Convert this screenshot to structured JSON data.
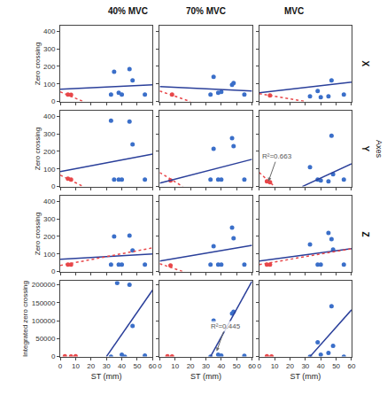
{
  "column_titles": [
    "40% MVC",
    "70% MVC",
    "MVC"
  ],
  "row_labels": [
    "X",
    "Y",
    "Z"
  ],
  "side_label": "Axes",
  "chart_data": [
    {
      "type": "scatter",
      "ylabel": "Zero crossing",
      "tick_labels": "y",
      "xlim": [
        0,
        60
      ],
      "xticks": [
        0,
        10,
        20,
        30,
        40,
        50,
        60
      ],
      "ylim": [
        0,
        430
      ],
      "yticks": [
        0,
        100,
        200,
        300,
        400
      ],
      "series": [
        {
          "type": "scatter",
          "color": "#3b6fc9",
          "marker": "circle",
          "x": [
            33,
            35,
            38,
            40,
            45,
            47,
            55
          ],
          "values": [
            40,
            170,
            50,
            40,
            185,
            120,
            40
          ]
        },
        {
          "type": "scatter",
          "color": "#e8474a",
          "marker": "circle",
          "x": [
            5,
            7
          ],
          "values": [
            40,
            38
          ]
        },
        {
          "type": "line",
          "color": "#2a3f9a",
          "line_style": "solid",
          "x": [
            0,
            60
          ],
          "values": [
            70,
            95
          ]
        },
        {
          "type": "line",
          "color": "#e8474a",
          "line_style": "dotted",
          "x": [
            0,
            15
          ],
          "values": [
            55,
            0
          ]
        }
      ]
    },
    {
      "type": "scatter",
      "tick_labels": false,
      "xlim": [
        0,
        60
      ],
      "xticks": [
        0,
        10,
        20,
        30,
        40,
        50,
        60
      ],
      "ylim": [
        0,
        430
      ],
      "yticks": [
        0,
        100,
        200,
        300,
        400
      ],
      "series": [
        {
          "type": "scatter",
          "color": "#3b6fc9",
          "marker": "circle",
          "x": [
            33,
            35,
            38,
            40,
            47,
            48,
            55
          ],
          "values": [
            40,
            140,
            50,
            55,
            95,
            105,
            40
          ]
        },
        {
          "type": "scatter",
          "color": "#e8474a",
          "marker": "circle",
          "x": [
            8
          ],
          "values": [
            40
          ]
        },
        {
          "type": "line",
          "color": "#2a3f9a",
          "line_style": "solid",
          "x": [
            0,
            60
          ],
          "values": [
            85,
            60
          ]
        },
        {
          "type": "line",
          "color": "#e8474a",
          "line_style": "dotted",
          "x": [
            0,
            20
          ],
          "values": [
            60,
            0
          ]
        }
      ]
    },
    {
      "type": "scatter",
      "tick_labels": false,
      "xlim": [
        0,
        60
      ],
      "xticks": [
        0,
        10,
        20,
        30,
        40,
        50,
        60
      ],
      "ylim": [
        0,
        430
      ],
      "yticks": [
        0,
        100,
        200,
        300,
        400
      ],
      "series": [
        {
          "type": "scatter",
          "color": "#3b6fc9",
          "marker": "circle",
          "x": [
            33,
            38,
            40,
            45,
            47,
            55
          ],
          "values": [
            30,
            60,
            25,
            30,
            120,
            40
          ]
        },
        {
          "type": "scatter",
          "color": "#e8474a",
          "marker": "circle",
          "x": [
            7
          ],
          "values": [
            35
          ]
        },
        {
          "type": "line",
          "color": "#2a3f9a",
          "line_style": "solid",
          "x": [
            0,
            60
          ],
          "values": [
            50,
            110
          ]
        },
        {
          "type": "line",
          "color": "#e8474a",
          "line_style": "dotted",
          "x": [
            0,
            30
          ],
          "values": [
            45,
            0
          ]
        }
      ]
    },
    {
      "type": "scatter",
      "ylabel": "Zero crossing",
      "tick_labels": "y",
      "xlim": [
        0,
        60
      ],
      "xticks": [
        0,
        10,
        20,
        30,
        40,
        50,
        60
      ],
      "ylim": [
        0,
        430
      ],
      "yticks": [
        0,
        100,
        200,
        300,
        400
      ],
      "series": [
        {
          "type": "scatter",
          "color": "#3b6fc9",
          "marker": "circle",
          "x": [
            33,
            35,
            38,
            40,
            45,
            47,
            55
          ],
          "values": [
            375,
            40,
            40,
            40,
            370,
            240,
            40
          ]
        },
        {
          "type": "scatter",
          "color": "#e8474a",
          "marker": "circle",
          "x": [
            5,
            7
          ],
          "values": [
            45,
            40
          ]
        },
        {
          "type": "line",
          "color": "#2a3f9a",
          "line_style": "solid",
          "x": [
            0,
            60
          ],
          "values": [
            85,
            185
          ]
        },
        {
          "type": "line",
          "color": "#e8474a",
          "line_style": "dotted",
          "x": [
            0,
            15
          ],
          "values": [
            65,
            0
          ]
        }
      ]
    },
    {
      "type": "scatter",
      "tick_labels": false,
      "xlim": [
        0,
        60
      ],
      "xticks": [
        0,
        10,
        20,
        30,
        40,
        50,
        60
      ],
      "ylim": [
        0,
        430
      ],
      "yticks": [
        0,
        100,
        200,
        300,
        400
      ],
      "series": [
        {
          "type": "scatter",
          "color": "#3b6fc9",
          "marker": "circle",
          "x": [
            33,
            35,
            38,
            40,
            47,
            48,
            55
          ],
          "values": [
            40,
            215,
            40,
            40,
            275,
            230,
            40
          ]
        },
        {
          "type": "scatter",
          "color": "#e8474a",
          "marker": "circle",
          "x": [
            7
          ],
          "values": [
            35
          ]
        },
        {
          "type": "line",
          "color": "#2a3f9a",
          "line_style": "solid",
          "x": [
            0,
            60
          ],
          "values": [
            20,
            155
          ]
        },
        {
          "type": "line",
          "color": "#e8474a",
          "line_style": "dotted",
          "x": [
            0,
            15
          ],
          "values": [
            80,
            0
          ]
        }
      ]
    },
    {
      "type": "scatter",
      "tick_labels": false,
      "xlim": [
        0,
        60
      ],
      "xticks": [
        0,
        10,
        20,
        30,
        40,
        50,
        60
      ],
      "ylim": [
        0,
        430
      ],
      "yticks": [
        0,
        100,
        200,
        300,
        400
      ],
      "series": [
        {
          "type": "scatter",
          "color": "#3b6fc9",
          "marker": "circle",
          "x": [
            33,
            38,
            40,
            45,
            47,
            48,
            55
          ],
          "values": [
            110,
            40,
            35,
            30,
            290,
            70,
            40
          ]
        },
        {
          "type": "scatter",
          "color": "#e8474a",
          "marker": "circle",
          "x": [
            5,
            7
          ],
          "values": [
            30,
            25
          ]
        },
        {
          "type": "line",
          "color": "#2a3f9a",
          "line_style": "solid",
          "x": [
            28,
            60
          ],
          "values": [
            0,
            130
          ]
        },
        {
          "type": "line",
          "color": "#e8474a",
          "line_style": "dotted",
          "x": [
            0,
            10
          ],
          "values": [
            80,
            0
          ]
        }
      ],
      "annotations": [
        {
          "text": "R²=0.663",
          "x": 6,
          "y": 30
        }
      ]
    },
    {
      "type": "scatter",
      "ylabel": "Zero crossing",
      "tick_labels": "y",
      "xlim": [
        0,
        60
      ],
      "xticks": [
        0,
        10,
        20,
        30,
        40,
        50,
        60
      ],
      "ylim": [
        0,
        430
      ],
      "yticks": [
        0,
        100,
        200,
        300,
        400
      ],
      "series": [
        {
          "type": "scatter",
          "color": "#3b6fc9",
          "marker": "circle",
          "x": [
            33,
            35,
            38,
            40,
            45,
            47,
            55
          ],
          "values": [
            40,
            200,
            40,
            40,
            205,
            120,
            40
          ]
        },
        {
          "type": "scatter",
          "color": "#e8474a",
          "marker": "circle",
          "x": [
            5,
            7
          ],
          "values": [
            40,
            40
          ]
        },
        {
          "type": "line",
          "color": "#2a3f9a",
          "line_style": "solid",
          "x": [
            0,
            60
          ],
          "values": [
            70,
            100
          ]
        },
        {
          "type": "line",
          "color": "#e8474a",
          "line_style": "dotted",
          "x": [
            0,
            60
          ],
          "values": [
            35,
            135
          ]
        }
      ]
    },
    {
      "type": "scatter",
      "tick_labels": false,
      "xlim": [
        0,
        60
      ],
      "xticks": [
        0,
        10,
        20,
        30,
        40,
        50,
        60
      ],
      "ylim": [
        0,
        430
      ],
      "yticks": [
        0,
        100,
        200,
        300,
        400
      ],
      "series": [
        {
          "type": "scatter",
          "color": "#3b6fc9",
          "marker": "circle",
          "x": [
            33,
            35,
            38,
            40,
            47,
            48,
            55
          ],
          "values": [
            40,
            145,
            40,
            40,
            250,
            190,
            40
          ]
        },
        {
          "type": "scatter",
          "color": "#e8474a",
          "marker": "circle",
          "x": [
            7
          ],
          "values": [
            35
          ]
        },
        {
          "type": "line",
          "color": "#2a3f9a",
          "line_style": "solid",
          "x": [
            0,
            60
          ],
          "values": [
            60,
            150
          ]
        },
        {
          "type": "line",
          "color": "#e8474a",
          "line_style": "dotted",
          "x": [
            0,
            15
          ],
          "values": [
            45,
            0
          ]
        }
      ]
    },
    {
      "type": "scatter",
      "tick_labels": false,
      "xlim": [
        0,
        60
      ],
      "xticks": [
        0,
        10,
        20,
        30,
        40,
        50,
        60
      ],
      "ylim": [
        0,
        430
      ],
      "yticks": [
        0,
        100,
        200,
        300,
        400
      ],
      "series": [
        {
          "type": "scatter",
          "color": "#3b6fc9",
          "marker": "circle",
          "x": [
            33,
            38,
            40,
            45,
            47,
            48,
            55
          ],
          "values": [
            155,
            40,
            40,
            220,
            185,
            125,
            40
          ]
        },
        {
          "type": "scatter",
          "color": "#e8474a",
          "marker": "circle",
          "x": [
            5,
            7
          ],
          "values": [
            40,
            40
          ]
        },
        {
          "type": "line",
          "color": "#2a3f9a",
          "line_style": "solid",
          "x": [
            0,
            60
          ],
          "values": [
            60,
            130
          ]
        },
        {
          "type": "line",
          "color": "#e8474a",
          "line_style": "dotted",
          "x": [
            0,
            60
          ],
          "values": [
            40,
            130
          ]
        }
      ]
    },
    {
      "type": "scatter",
      "ylabel": "Integrated zero crossing",
      "xlabel": "ST (mm)",
      "tick_labels": true,
      "xlim": [
        0,
        60
      ],
      "xticks": [
        0,
        10,
        20,
        30,
        40,
        50,
        60
      ],
      "ylim": [
        0,
        210000
      ],
      "yticks": [
        0,
        50000,
        100000,
        150000,
        200000
      ],
      "series": [
        {
          "type": "scatter",
          "color": "#3b6fc9",
          "marker": "circle",
          "x": [
            33,
            37,
            40,
            42,
            45,
            47,
            55
          ],
          "values": [
            0,
            205000,
            5000,
            0,
            200000,
            85000,
            3000
          ]
        },
        {
          "type": "scatter",
          "color": "#e8474a",
          "marker": "circle",
          "x": [
            3,
            7,
            10
          ],
          "values": [
            1000,
            500,
            1000
          ]
        },
        {
          "type": "line",
          "color": "#2a3f9a",
          "line_style": "solid",
          "x": [
            30,
            60
          ],
          "values": [
            0,
            185000
          ]
        }
      ]
    },
    {
      "type": "scatter",
      "xlabel": "ST (mm)",
      "tick_labels": "x",
      "xlim": [
        0,
        60
      ],
      "xticks": [
        0,
        10,
        20,
        30,
        40,
        50,
        60
      ],
      "ylim": [
        0,
        210000
      ],
      "yticks": [
        0,
        50000,
        100000,
        150000,
        200000
      ],
      "series": [
        {
          "type": "scatter",
          "color": "#3b6fc9",
          "marker": "circle",
          "x": [
            33,
            35,
            38,
            40,
            47,
            48,
            55
          ],
          "values": [
            0,
            100000,
            5000,
            3000,
            120000,
            125000,
            2000
          ]
        },
        {
          "type": "scatter",
          "color": "#e8474a",
          "marker": "circle",
          "x": [
            5,
            8
          ],
          "values": [
            1000,
            500
          ]
        },
        {
          "type": "line",
          "color": "#2a3f9a",
          "line_style": "solid",
          "x": [
            33,
            60
          ],
          "values": [
            0,
            210000
          ]
        }
      ],
      "annotations": [
        {
          "text": "R²=0.445",
          "x": 37,
          "y": 15000
        }
      ]
    },
    {
      "type": "scatter",
      "xlabel": "ST (mm)",
      "tick_labels": "x",
      "xlim": [
        0,
        60
      ],
      "xticks": [
        0,
        10,
        20,
        30,
        40,
        50,
        60
      ],
      "ylim": [
        0,
        210000
      ],
      "yticks": [
        0,
        50000,
        100000,
        150000,
        200000
      ],
      "series": [
        {
          "type": "scatter",
          "color": "#3b6fc9",
          "marker": "circle",
          "x": [
            33,
            38,
            40,
            45,
            47,
            48,
            55
          ],
          "values": [
            0,
            40000,
            5000,
            10000,
            140000,
            30000,
            0
          ]
        },
        {
          "type": "scatter",
          "color": "#e8474a",
          "marker": "circle",
          "x": [
            5,
            8
          ],
          "values": [
            1000,
            500
          ]
        },
        {
          "type": "line",
          "color": "#2a3f9a",
          "line_style": "solid",
          "x": [
            33,
            60
          ],
          "values": [
            0,
            130000
          ]
        }
      ]
    }
  ]
}
